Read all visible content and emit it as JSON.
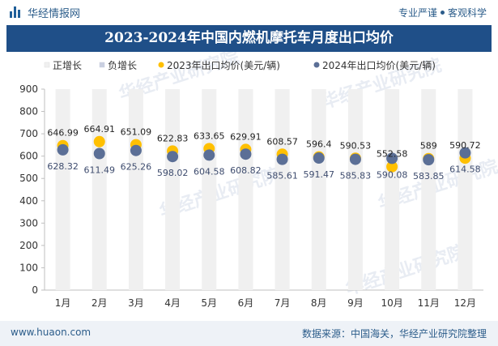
{
  "header": {
    "brand": "华经情报网",
    "slogan_left": "专业严谨",
    "slogan_right": "客观科学"
  },
  "footer": {
    "website": "www.huaon.com",
    "source": "数据来源：中国海关，华经产业研究院整理"
  },
  "watermark": "华经产业研究院",
  "colors": {
    "title_bg": "#1f4f88",
    "bar": "#f0f0f0",
    "series_2023": "#ffc000",
    "series_2024": "#5b6f96",
    "neg_legend": "#c9cfe0",
    "label": "#222222",
    "label_2024": "#3e4c6e"
  },
  "chart_data": {
    "type": "bar+scatter",
    "title": "2023-2024年中国内燃机摩托车月度出口均价",
    "categories": [
      "1月",
      "2月",
      "3月",
      "4月",
      "5月",
      "6月",
      "7月",
      "8月",
      "9月",
      "10月",
      "11月",
      "12月"
    ],
    "legend": [
      "正增长",
      "负增长",
      "2023年出口均价(美元/辆)",
      "2024年出口均价(美元/辆)"
    ],
    "legend_position": "top",
    "ylim": [
      0,
      900
    ],
    "yticks": [
      0,
      100,
      200,
      300,
      400,
      500,
      600,
      700,
      800,
      900
    ],
    "series": [
      {
        "name": "2023年出口均价(美元/辆)",
        "values": [
          646.99,
          664.91,
          651.09,
          622.83,
          633.65,
          629.91,
          608.57,
          596.4,
          590.53,
          552.58,
          589,
          590.72
        ],
        "labels": [
          "646.99",
          "664.91",
          "651.09",
          "622.83",
          "633.65",
          "629.91",
          "608.57",
          "596.4",
          "590.53",
          "552.58",
          "589",
          "590.72"
        ]
      },
      {
        "name": "2024年出口均价(美元/辆)",
        "values": [
          628.32,
          611.49,
          625.26,
          598.02,
          604.58,
          608.82,
          585.61,
          591.47,
          585.83,
          590.08,
          583.85,
          614.58
        ],
        "labels": [
          "628.32",
          "611.49",
          "625.26",
          "598.02",
          "604.58",
          "608.82",
          "585.61",
          "591.47",
          "585.83",
          "590.08",
          "583.85",
          "614.58"
        ]
      }
    ],
    "growth_bars": {
      "name": "正增长/负增长",
      "values": [
        900,
        900,
        900,
        900,
        900,
        900,
        900,
        900,
        900,
        900,
        900,
        900
      ]
    },
    "grid": false
  }
}
